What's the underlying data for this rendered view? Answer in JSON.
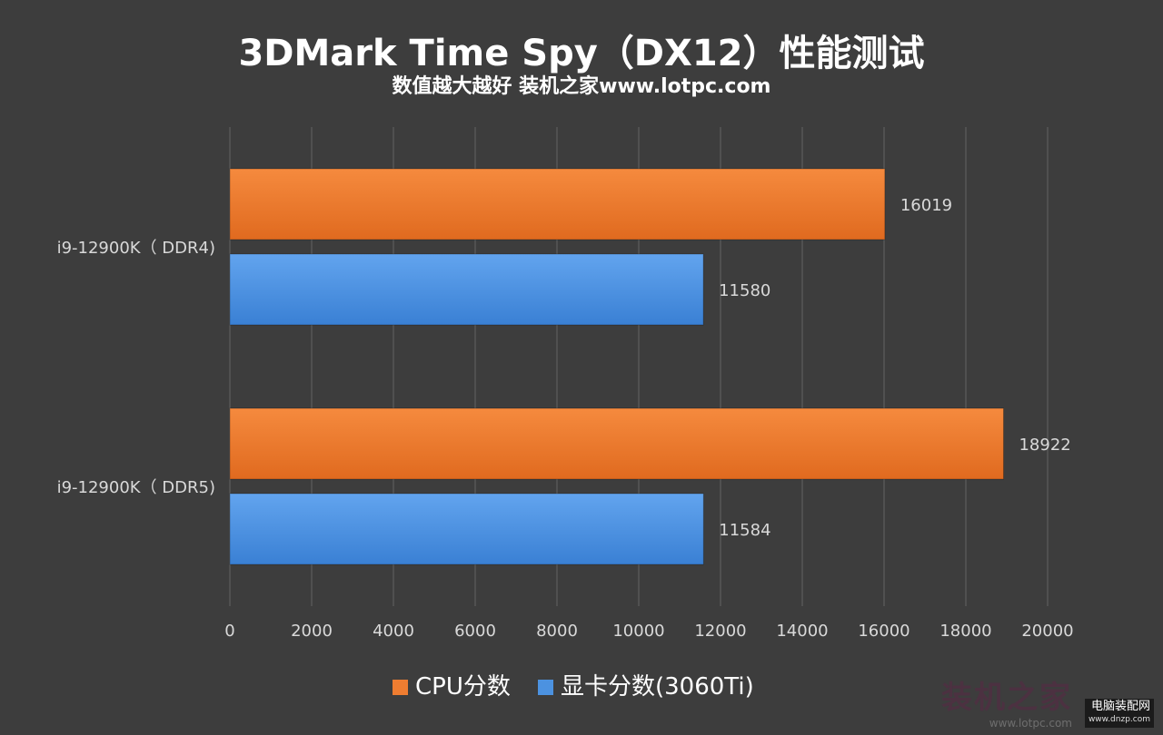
{
  "chart_data": {
    "type": "bar",
    "orientation": "horizontal",
    "title": "3DMark Time Spy（DX12）性能测试",
    "subtitle": "数值越大越好 装机之家www.lotpc.com",
    "categories": [
      "i9-12900K（ DDR4)",
      "i9-12900K（ DDR5)"
    ],
    "series": [
      {
        "name": "CPU分数",
        "color": "#ef7d31",
        "values": [
          16019,
          18922
        ]
      },
      {
        "name": "显卡分数(3060Ti)",
        "color": "#4c92e0",
        "values": [
          11580,
          11584
        ]
      }
    ],
    "xlim": [
      0,
      20000
    ],
    "x_ticks": [
      0,
      2000,
      4000,
      6000,
      8000,
      10000,
      12000,
      14000,
      16000,
      18000,
      20000
    ],
    "grid": true,
    "legend_position": "bottom",
    "data_labels": true
  },
  "watermark": {
    "site_name": "电脑装配网",
    "site_url": "www.dnzp.com",
    "stamp_text": "装机之家",
    "stamp_url": "www.lotpc.com"
  },
  "colors": {
    "background": "#3d3d3d",
    "gridline": "#5e5e5e",
    "text": "#ffffff",
    "axis_text": "#d9d9d9"
  }
}
